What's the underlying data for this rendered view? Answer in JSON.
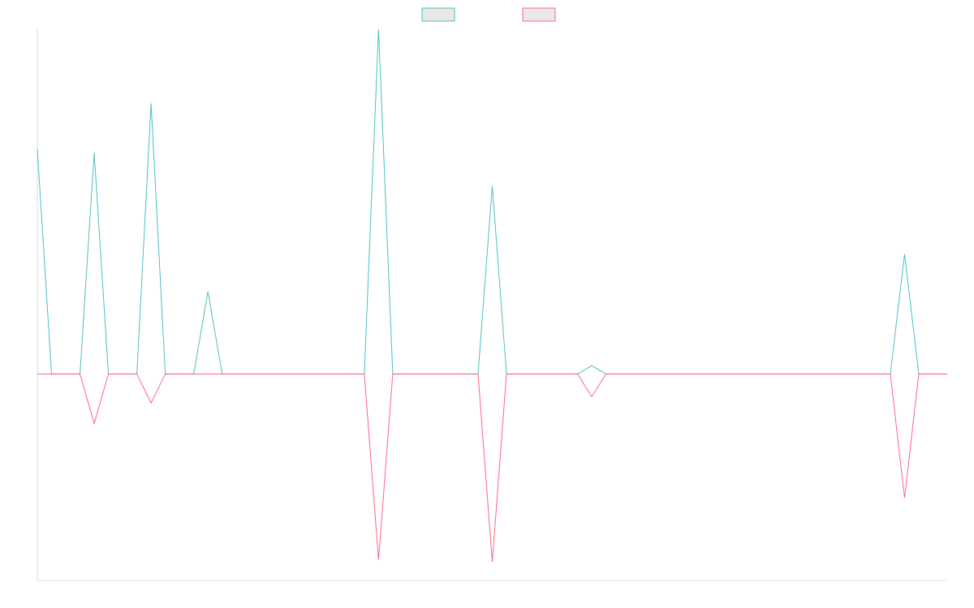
{
  "legend": {
    "items": [
      {
        "swatch_fill": "#e8e8e8",
        "stroke": "#4bc0c0"
      },
      {
        "swatch_fill": "#e8e8e8",
        "stroke": "#ff6384"
      }
    ]
  },
  "chart_data": {
    "type": "line",
    "grid": false,
    "legend_position": "top",
    "xlim": [
      0,
      64
    ],
    "ylim": [
      -100,
      167
    ],
    "x": [
      0,
      1,
      2,
      3,
      4,
      5,
      6,
      7,
      8,
      9,
      10,
      11,
      12,
      13,
      14,
      15,
      16,
      17,
      18,
      19,
      20,
      21,
      22,
      23,
      24,
      25,
      26,
      27,
      28,
      29,
      30,
      31,
      32,
      33,
      34,
      35,
      36,
      37,
      38,
      39,
      40,
      41,
      42,
      43,
      44,
      45,
      46,
      47,
      48,
      49,
      50,
      51,
      52,
      53,
      54,
      55,
      56,
      57,
      58,
      59,
      60,
      61,
      62,
      63,
      64
    ],
    "series": [
      {
        "color": "#4bc0c0",
        "values": [
          109,
          0,
          0,
          0,
          107,
          0,
          0,
          0,
          131,
          0,
          0,
          0,
          40,
          0,
          0,
          0,
          0,
          0,
          0,
          0,
          0,
          0,
          0,
          0,
          167,
          0,
          0,
          0,
          0,
          0,
          0,
          0,
          91,
          0,
          0,
          0,
          0,
          0,
          0,
          4,
          0,
          0,
          0,
          0,
          0,
          0,
          0,
          0,
          0,
          0,
          0,
          0,
          0,
          0,
          0,
          0,
          0,
          0,
          0,
          0,
          0,
          58,
          0,
          0,
          0
        ]
      },
      {
        "color": "#ff6384",
        "values": [
          0,
          0,
          0,
          0,
          -24,
          0,
          0,
          0,
          -14,
          0,
          0,
          0,
          0,
          0,
          0,
          0,
          0,
          0,
          0,
          0,
          0,
          0,
          0,
          0,
          -90,
          0,
          0,
          0,
          0,
          0,
          0,
          0,
          -91,
          0,
          0,
          0,
          0,
          0,
          0,
          -11,
          0,
          0,
          0,
          0,
          0,
          0,
          0,
          0,
          0,
          0,
          0,
          0,
          0,
          0,
          0,
          0,
          0,
          0,
          0,
          0,
          0,
          -60,
          0,
          0,
          0
        ]
      }
    ]
  }
}
